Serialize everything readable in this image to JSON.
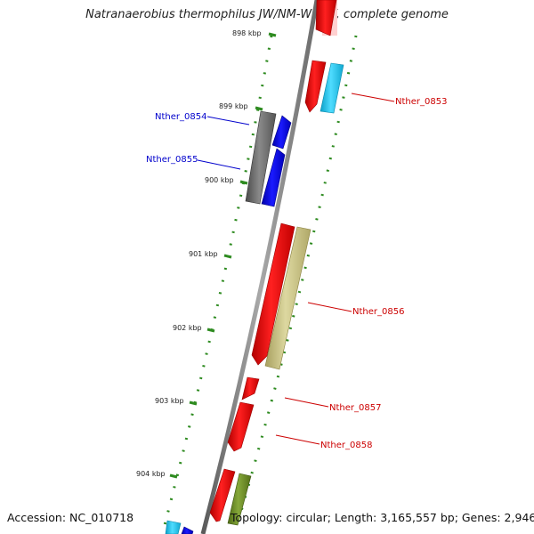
{
  "title": "Natranaerobius thermophilus JW/NM-WN-LF, complete genome",
  "footer": {
    "accession": "Accession: NC_010718",
    "summary": "Topology: circular; Length: 3,165,557 bp; Genes: 2,946"
  },
  "scale_ticks": [
    "898 kbp",
    "899 kbp",
    "900 kbp",
    "901 kbp",
    "902 kbp",
    "903 kbp",
    "904 kbp"
  ],
  "gene_labels": [
    {
      "name": "Nther_0853",
      "color": "#cc0000"
    },
    {
      "name": "Nther_0854",
      "color": "#0000cc"
    },
    {
      "name": "Nther_0855",
      "color": "#0000cc"
    },
    {
      "name": "Nther_0856",
      "color": "#cc0000"
    },
    {
      "name": "Nther_0857",
      "color": "#cc0000"
    },
    {
      "name": "Nther_0858",
      "color": "#cc0000"
    }
  ],
  "colors": {
    "backbone": "#808080",
    "tick": "#2e8b20",
    "cds_red": "#ee0000",
    "cds_blue": "#0000ee",
    "cds_gray": "#6f6f6f",
    "cds_cyan": "#22c8ee",
    "cds_khaki": "#c8c080",
    "cds_olive": "#6e8e2a"
  }
}
